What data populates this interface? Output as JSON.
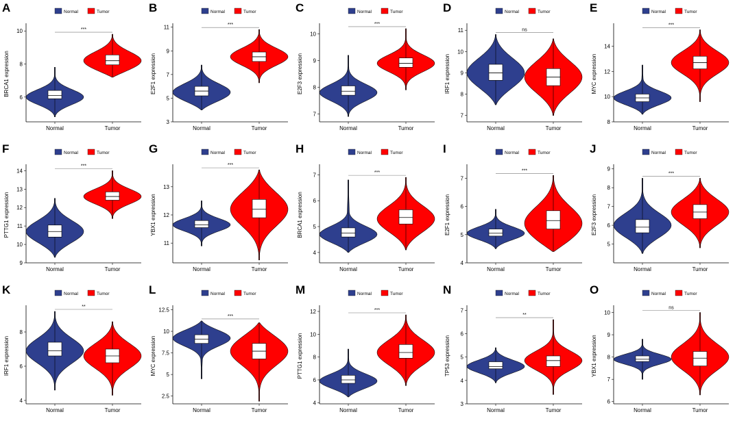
{
  "figure": {
    "legend_labels": [
      "Normal",
      "Tumor"
    ],
    "colors": {
      "Normal": "#2E3F8E",
      "Tumor": "#FF0000"
    }
  },
  "chart_data": [
    {
      "panel": "A",
      "type": "violin",
      "ylabel": "BRCA1 expression",
      "categories": [
        "Normal",
        "Tumor"
      ],
      "ylim": [
        4.5,
        10.3
      ],
      "yticks": [
        6,
        8,
        10
      ],
      "significance": "***",
      "series": [
        {
          "name": "Normal",
          "median": 6.1,
          "q1": 5.9,
          "q3": 6.4,
          "min": 4.8,
          "max": 7.8,
          "density_peak": 6.0
        },
        {
          "name": "Tumor",
          "median": 8.2,
          "q1": 7.95,
          "q3": 8.55,
          "min": 7.2,
          "max": 9.8,
          "density_peak": 8.2
        }
      ]
    },
    {
      "panel": "B",
      "type": "violin",
      "ylabel": "E2F1 expression",
      "categories": [
        "Normal",
        "Tumor"
      ],
      "ylim": [
        3,
        11.1
      ],
      "yticks": [
        3,
        5,
        7,
        9,
        11
      ],
      "significance": "***",
      "series": [
        {
          "name": "Normal",
          "median": 5.6,
          "q1": 5.2,
          "q3": 6.0,
          "min": 4.0,
          "max": 7.8,
          "density_peak": 5.5
        },
        {
          "name": "Tumor",
          "median": 8.5,
          "q1": 8.1,
          "q3": 8.9,
          "min": 6.3,
          "max": 10.8,
          "density_peak": 8.5
        }
      ]
    },
    {
      "panel": "C",
      "type": "violin",
      "ylabel": "E2F3 expression",
      "categories": [
        "Normal",
        "Tumor"
      ],
      "ylim": [
        6.7,
        10.3
      ],
      "yticks": [
        7,
        8,
        9,
        10
      ],
      "significance": "***",
      "series": [
        {
          "name": "Normal",
          "median": 7.85,
          "q1": 7.7,
          "q3": 8.05,
          "min": 6.9,
          "max": 9.2,
          "density_peak": 7.8
        },
        {
          "name": "Tumor",
          "median": 8.9,
          "q1": 8.75,
          "q3": 9.1,
          "min": 7.9,
          "max": 10.2,
          "density_peak": 8.9
        }
      ]
    },
    {
      "panel": "D",
      "type": "violin",
      "ylabel": "IRF1 expression",
      "categories": [
        "Normal",
        "Tumor"
      ],
      "ylim": [
        6.7,
        11.2
      ],
      "yticks": [
        7,
        8,
        9,
        10,
        11
      ],
      "significance": "ns",
      "series": [
        {
          "name": "Normal",
          "median": 9.0,
          "q1": 8.65,
          "q3": 9.4,
          "min": 7.5,
          "max": 10.8,
          "density_peak": 9.0
        },
        {
          "name": "Tumor",
          "median": 8.8,
          "q1": 8.4,
          "q3": 9.2,
          "min": 7.0,
          "max": 10.6,
          "density_peak": 8.8
        }
      ]
    },
    {
      "panel": "E",
      "type": "violin",
      "ylabel": "MYC expression",
      "categories": [
        "Normal",
        "Tumor"
      ],
      "ylim": [
        8,
        15.6
      ],
      "yticks": [
        8,
        10,
        12,
        14
      ],
      "significance": "***",
      "series": [
        {
          "name": "Normal",
          "median": 9.9,
          "q1": 9.6,
          "q3": 10.2,
          "min": 8.6,
          "max": 12.5,
          "density_peak": 9.9
        },
        {
          "name": "Tumor",
          "median": 12.7,
          "q1": 12.2,
          "q3": 13.2,
          "min": 9.6,
          "max": 15.3,
          "density_peak": 12.7
        }
      ]
    },
    {
      "panel": "F",
      "type": "violin",
      "ylabel": "PTTG1 expression",
      "categories": [
        "Normal",
        "Tumor"
      ],
      "ylim": [
        9,
        14.2
      ],
      "yticks": [
        9,
        10,
        11,
        12,
        13,
        14
      ],
      "significance": "***",
      "series": [
        {
          "name": "Normal",
          "median": 10.7,
          "q1": 10.4,
          "q3": 11.05,
          "min": 9.3,
          "max": 12.5,
          "density_peak": 10.7
        },
        {
          "name": "Tumor",
          "median": 12.6,
          "q1": 12.4,
          "q3": 12.85,
          "min": 11.4,
          "max": 14.0,
          "density_peak": 12.6
        }
      ]
    },
    {
      "panel": "G",
      "type": "violin",
      "ylabel": "YBX1 expression",
      "categories": [
        "Normal",
        "Tumor"
      ],
      "ylim": [
        10.3,
        13.7
      ],
      "yticks": [
        11,
        12,
        13
      ],
      "significance": "***",
      "series": [
        {
          "name": "Normal",
          "median": 11.65,
          "q1": 11.55,
          "q3": 11.8,
          "min": 10.9,
          "max": 12.5,
          "density_peak": 11.65
        },
        {
          "name": "Tumor",
          "median": 12.2,
          "q1": 11.9,
          "q3": 12.55,
          "min": 10.4,
          "max": 13.6,
          "density_peak": 12.2
        }
      ]
    },
    {
      "panel": "H",
      "type": "violin",
      "ylabel": "BRCA1 expression",
      "categories": [
        "Normal",
        "Tumor"
      ],
      "ylim": [
        3.6,
        7.3
      ],
      "yticks": [
        4,
        5,
        6,
        7
      ],
      "significance": "***",
      "series": [
        {
          "name": "Normal",
          "median": 4.75,
          "q1": 4.6,
          "q3": 4.95,
          "min": 4.0,
          "max": 6.8,
          "density_peak": 4.7
        },
        {
          "name": "Tumor",
          "median": 5.35,
          "q1": 5.1,
          "q3": 5.65,
          "min": 4.1,
          "max": 6.9,
          "density_peak": 5.3
        }
      ]
    },
    {
      "panel": "I",
      "type": "violin",
      "ylabel": "E2F1 expression",
      "categories": [
        "Normal",
        "Tumor"
      ],
      "ylim": [
        4,
        7.4
      ],
      "yticks": [
        4,
        5,
        6,
        7
      ],
      "significance": "***",
      "series": [
        {
          "name": "Normal",
          "median": 5.05,
          "q1": 4.95,
          "q3": 5.2,
          "min": 4.5,
          "max": 5.9,
          "density_peak": 5.05
        },
        {
          "name": "Tumor",
          "median": 5.5,
          "q1": 5.2,
          "q3": 5.85,
          "min": 4.4,
          "max": 7.1,
          "density_peak": 5.4
        }
      ]
    },
    {
      "panel": "J",
      "type": "violin",
      "ylabel": "E2F3 expression",
      "categories": [
        "Normal",
        "Tumor"
      ],
      "ylim": [
        4,
        9.1
      ],
      "yticks": [
        5,
        6,
        7,
        8,
        9
      ],
      "significance": "***",
      "series": [
        {
          "name": "Normal",
          "median": 5.9,
          "q1": 5.6,
          "q3": 6.3,
          "min": 4.5,
          "max": 8.5,
          "density_peak": 6.0
        },
        {
          "name": "Tumor",
          "median": 6.7,
          "q1": 6.35,
          "q3": 7.1,
          "min": 4.8,
          "max": 8.5,
          "density_peak": 6.7
        }
      ]
    },
    {
      "panel": "K",
      "type": "violin",
      "ylabel": "IRF1 expression",
      "categories": [
        "Normal",
        "Tumor"
      ],
      "ylim": [
        3.8,
        9.4
      ],
      "yticks": [
        4,
        6,
        8
      ],
      "significance": "**",
      "series": [
        {
          "name": "Normal",
          "median": 6.9,
          "q1": 6.6,
          "q3": 7.4,
          "min": 4.6,
          "max": 9.2,
          "density_peak": 6.9
        },
        {
          "name": "Tumor",
          "median": 6.6,
          "q1": 6.2,
          "q3": 7.0,
          "min": 4.3,
          "max": 8.6,
          "density_peak": 6.6
        }
      ]
    },
    {
      "panel": "L",
      "type": "violin",
      "ylabel": "MYC expression",
      "categories": [
        "Normal",
        "Tumor"
      ],
      "ylim": [
        1.6,
        12.7
      ],
      "yticks": [
        2.5,
        5.0,
        7.5,
        10.0,
        12.5
      ],
      "significance": "***",
      "series": [
        {
          "name": "Normal",
          "median": 9.1,
          "q1": 8.6,
          "q3": 9.6,
          "min": 4.5,
          "max": 11.2,
          "density_peak": 9.2
        },
        {
          "name": "Tumor",
          "median": 7.7,
          "q1": 6.8,
          "q3": 8.6,
          "min": 1.9,
          "max": 11.0,
          "density_peak": 7.7
        }
      ]
    },
    {
      "panel": "M",
      "type": "violin",
      "ylabel": "PTTG1 expression",
      "categories": [
        "Normal",
        "Tumor"
      ],
      "ylim": [
        3.9,
        12.3
      ],
      "yticks": [
        4,
        6,
        8,
        10,
        12
      ],
      "significance": "***",
      "series": [
        {
          "name": "Normal",
          "median": 6.0,
          "q1": 5.7,
          "q3": 6.4,
          "min": 4.5,
          "max": 8.7,
          "density_peak": 5.9
        },
        {
          "name": "Tumor",
          "median": 8.4,
          "q1": 7.9,
          "q3": 9.1,
          "min": 5.5,
          "max": 11.7,
          "density_peak": 8.4
        }
      ]
    },
    {
      "panel": "N",
      "type": "violin",
      "ylabel": "TP53 expression",
      "categories": [
        "Normal",
        "Tumor"
      ],
      "ylim": [
        3,
        7.1
      ],
      "yticks": [
        3,
        4,
        5,
        6,
        7
      ],
      "significance": "**",
      "series": [
        {
          "name": "Normal",
          "median": 4.6,
          "q1": 4.5,
          "q3": 4.8,
          "min": 3.9,
          "max": 5.4,
          "density_peak": 4.6
        },
        {
          "name": "Tumor",
          "median": 4.85,
          "q1": 4.6,
          "q3": 5.05,
          "min": 3.4,
          "max": 6.6,
          "density_peak": 4.85
        }
      ]
    },
    {
      "panel": "O",
      "type": "violin",
      "ylabel": "YBX1 expression",
      "categories": [
        "Normal",
        "Tumor"
      ],
      "ylim": [
        5.9,
        10.2
      ],
      "yticks": [
        6,
        7,
        8,
        9,
        10
      ],
      "significance": "ns",
      "series": [
        {
          "name": "Normal",
          "median": 7.9,
          "q1": 7.8,
          "q3": 8.05,
          "min": 7.0,
          "max": 8.8,
          "density_peak": 7.9
        },
        {
          "name": "Tumor",
          "median": 7.95,
          "q1": 7.6,
          "q3": 8.25,
          "min": 6.3,
          "max": 10.0,
          "density_peak": 8.0
        }
      ]
    }
  ]
}
